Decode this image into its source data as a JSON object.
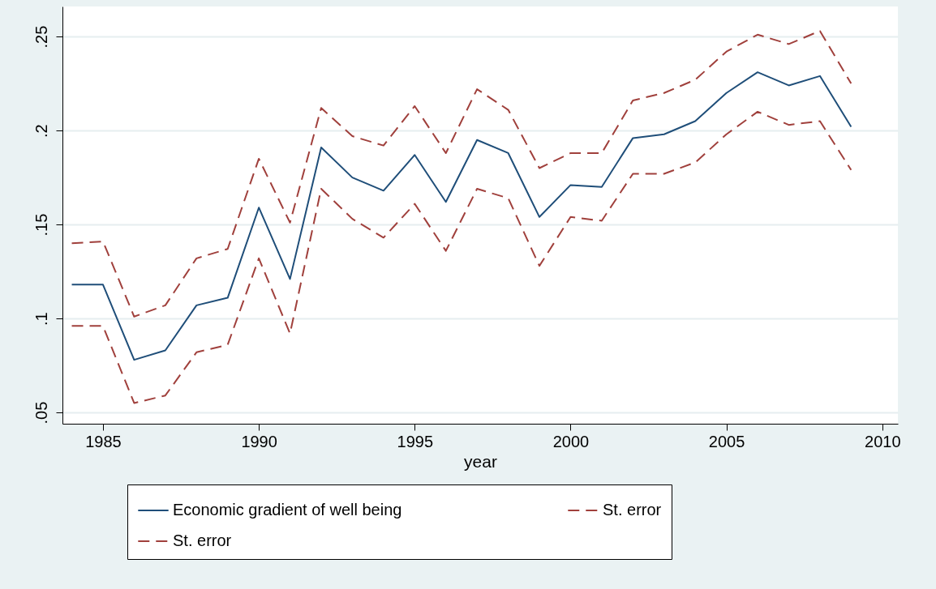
{
  "chart_data": {
    "type": "line",
    "xlabel": "year",
    "x": [
      1984,
      1985,
      1986,
      1987,
      1988,
      1989,
      1990,
      1991,
      1992,
      1993,
      1994,
      1995,
      1996,
      1997,
      1998,
      1999,
      2000,
      2001,
      2002,
      2003,
      2004,
      2005,
      2006,
      2007,
      2008,
      2009
    ],
    "series": [
      {
        "name": "Economic gradient of well being",
        "color": "#1f4e79",
        "line_style": "solid",
        "values": [
          0.118,
          0.118,
          0.078,
          0.083,
          0.107,
          0.111,
          0.159,
          0.121,
          0.191,
          0.175,
          0.168,
          0.187,
          0.162,
          0.195,
          0.188,
          0.154,
          0.171,
          0.17,
          0.196,
          0.198,
          0.205,
          0.22,
          0.231,
          0.224,
          0.229,
          0.202
        ]
      },
      {
        "name": "St. error",
        "color": "#a0403c",
        "line_style": "dashed",
        "values": [
          0.14,
          0.141,
          0.101,
          0.107,
          0.132,
          0.137,
          0.185,
          0.151,
          0.212,
          0.197,
          0.192,
          0.213,
          0.188,
          0.222,
          0.211,
          0.18,
          0.188,
          0.188,
          0.216,
          0.22,
          0.227,
          0.242,
          0.251,
          0.246,
          0.253,
          0.225
        ]
      },
      {
        "name": "St. error",
        "color": "#a0403c",
        "line_style": "dashed",
        "values": [
          0.096,
          0.096,
          0.055,
          0.059,
          0.082,
          0.086,
          0.132,
          0.092,
          0.169,
          0.153,
          0.143,
          0.161,
          0.136,
          0.169,
          0.164,
          0.128,
          0.154,
          0.152,
          0.177,
          0.177,
          0.183,
          0.198,
          0.21,
          0.203,
          0.205,
          0.179
        ]
      }
    ],
    "xlim": [
      1983.7,
      2010.5
    ],
    "xticks": [
      1985,
      1990,
      1995,
      2000,
      2005,
      2010
    ],
    "ylim": [
      0.044,
      0.266
    ],
    "yticks": [
      {
        "value": 0.05,
        "label": ".05"
      },
      {
        "value": 0.1,
        "label": ".1"
      },
      {
        "value": 0.15,
        "label": ".15"
      },
      {
        "value": 0.2,
        "label": ".2"
      },
      {
        "value": 0.25,
        "label": ".25"
      }
    ],
    "grid": "y",
    "legend": "bottom"
  }
}
